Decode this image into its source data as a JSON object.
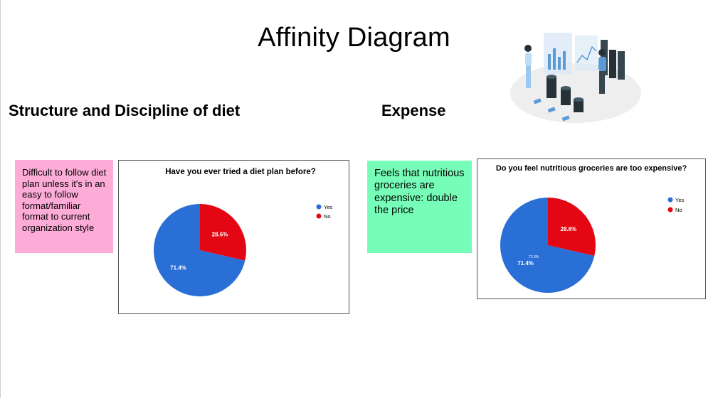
{
  "title": "Affinity Diagram",
  "sections": {
    "structure": "Structure and Discipline of diet",
    "expense": "Expense"
  },
  "notes": {
    "pink": "Difficult to follow diet plan unless it's in an easy to follow format/familiar format to current organization style",
    "green": "Feels that nutritious groceries are expensive: double the price"
  },
  "colors": {
    "yes": "#2a6fd6",
    "no": "#e30613",
    "note_pink": "#fdacd7",
    "note_green": "#76fdb7"
  },
  "chart_data": [
    {
      "type": "pie",
      "title": "Have you ever tried a diet plan before?",
      "categories": [
        "Yes",
        "No"
      ],
      "values": [
        71.4,
        28.6
      ],
      "data_labels": [
        "71.4%",
        "28.6%"
      ],
      "legend": "right",
      "extra_labels": []
    },
    {
      "type": "pie",
      "title": "Do you feel nutritious groceries are too expensive?",
      "categories": [
        "Yes",
        "No"
      ],
      "values": [
        71.4,
        28.6
      ],
      "data_labels": [
        "71.4%",
        "28.6%"
      ],
      "legend": "right",
      "extra_labels": [
        "73.3%"
      ]
    }
  ],
  "illustration": "data-analysis-illustration"
}
